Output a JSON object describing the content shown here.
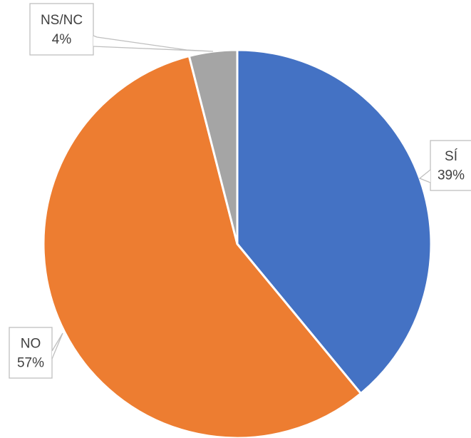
{
  "chart_data": {
    "type": "pie",
    "title": "",
    "start_angle_deg": 0,
    "direction": "clockwise",
    "slices": [
      {
        "label": "SÍ",
        "value": 39,
        "value_label": "39%",
        "color": "#4472C4"
      },
      {
        "label": "NO",
        "value": 57,
        "value_label": "57%",
        "color": "#ED7D31"
      },
      {
        "label": "NS/NC",
        "value": 4,
        "value_label": "4%",
        "color": "#A5A5A5"
      }
    ],
    "legend": "none",
    "data_labels": "callouts"
  }
}
